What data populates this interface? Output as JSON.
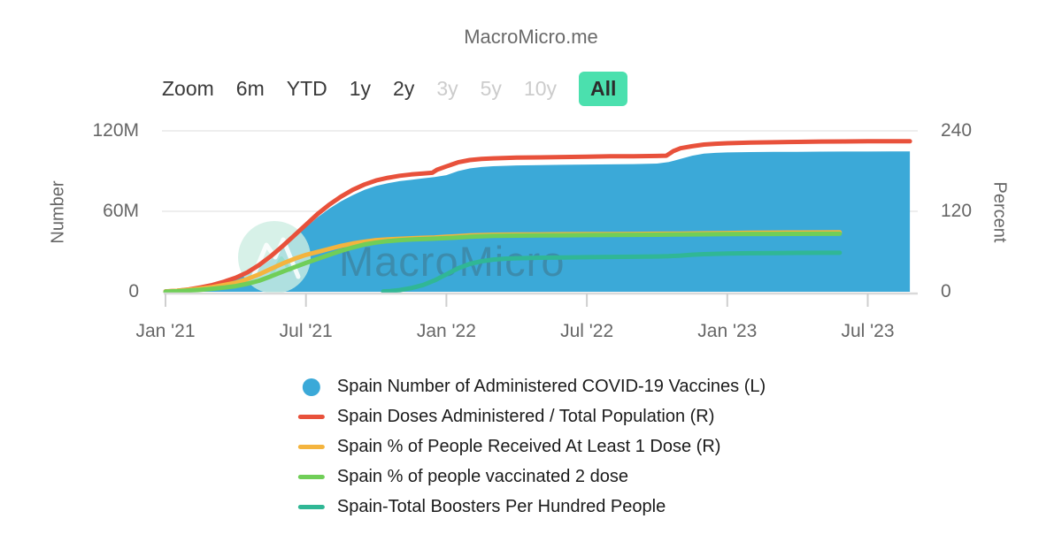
{
  "title": "MacroMicro.me",
  "toolbar": {
    "zoom_label": "Zoom",
    "accent_color": "#4BE0AE",
    "ranges": [
      {
        "label": "6m",
        "state": "enabled"
      },
      {
        "label": "YTD",
        "state": "enabled"
      },
      {
        "label": "1y",
        "state": "enabled"
      },
      {
        "label": "2y",
        "state": "enabled"
      },
      {
        "label": "3y",
        "state": "disabled"
      },
      {
        "label": "5y",
        "state": "disabled"
      },
      {
        "label": "10y",
        "state": "disabled"
      },
      {
        "label": "All",
        "state": "selected"
      }
    ]
  },
  "watermark": {
    "text": "MacroMicro"
  },
  "chart_data": {
    "type": "combo-area-line",
    "x_axis": {
      "labels": [
        "Jan '21",
        "Jul '21",
        "Jan '22",
        "Jul '22",
        "Jan '23",
        "Jul '23"
      ],
      "tick_t": [
        0,
        6,
        12,
        18,
        24,
        30
      ],
      "unit": "months since 2021-01"
    },
    "left_axis": {
      "title": "Number",
      "ticks": [
        "0",
        "60M",
        "120M"
      ],
      "tick_values": [
        0,
        60,
        120
      ],
      "max": 120
    },
    "right_axis": {
      "title": "Percent",
      "ticks": [
        "0",
        "120",
        "240"
      ],
      "tick_values": [
        0,
        120,
        240
      ],
      "max": 240
    },
    "grid": "horizontal",
    "legend_position": "bottom",
    "series": [
      {
        "name": "Spain Number of Administered COVID-19 Vaccines (L)",
        "type": "area",
        "axis": "left",
        "color": "#3BA9D8",
        "marker": "circle",
        "points": [
          [
            0,
            0
          ],
          [
            0.5,
            0.6
          ],
          [
            1,
            1.5
          ],
          [
            1.5,
            2.8
          ],
          [
            2,
            4.5
          ],
          [
            2.5,
            6.8
          ],
          [
            3,
            9.5
          ],
          [
            3.5,
            13
          ],
          [
            4,
            18
          ],
          [
            4.5,
            24
          ],
          [
            5,
            32
          ],
          [
            5.5,
            40
          ],
          [
            6,
            48
          ],
          [
            6.5,
            55.5
          ],
          [
            7,
            62
          ],
          [
            7.5,
            67.5
          ],
          [
            8,
            72
          ],
          [
            8.5,
            76
          ],
          [
            9,
            79
          ],
          [
            9.5,
            81
          ],
          [
            10,
            82.5
          ],
          [
            10.5,
            83.5
          ],
          [
            11,
            84.5
          ],
          [
            11.5,
            85.5
          ],
          [
            12,
            87
          ],
          [
            12.5,
            90
          ],
          [
            13,
            92
          ],
          [
            13.5,
            93
          ],
          [
            14,
            93.6
          ],
          [
            15,
            94.2
          ],
          [
            16,
            94.5
          ],
          [
            17,
            94.7
          ],
          [
            18,
            94.9
          ],
          [
            19,
            95
          ],
          [
            20,
            95.2
          ],
          [
            21,
            95.6
          ],
          [
            21.5,
            96.8
          ],
          [
            22,
            99
          ],
          [
            22.5,
            101.5
          ],
          [
            23,
            103
          ],
          [
            23.5,
            103.6
          ],
          [
            24,
            103.9
          ],
          [
            25,
            104.2
          ],
          [
            26,
            104.3
          ],
          [
            27,
            104.4
          ],
          [
            28,
            104.5
          ],
          [
            29,
            104.6
          ],
          [
            30,
            104.6
          ],
          [
            31,
            104.7
          ],
          [
            31.8,
            104.7
          ]
        ]
      },
      {
        "name": "Spain Doses Administered / Total Population (R)",
        "type": "line",
        "axis": "right",
        "color": "#E8513B",
        "marker": "line",
        "points": [
          [
            0,
            0.5
          ],
          [
            0.5,
            1.5
          ],
          [
            1,
            3.5
          ],
          [
            1.5,
            6.5
          ],
          [
            2,
            10
          ],
          [
            2.5,
            15
          ],
          [
            3,
            21
          ],
          [
            3.5,
            29
          ],
          [
            4,
            40
          ],
          [
            4.5,
            53
          ],
          [
            5,
            68
          ],
          [
            5.5,
            84
          ],
          [
            6,
            100
          ],
          [
            6.5,
            116
          ],
          [
            7,
            130
          ],
          [
            7.5,
            142
          ],
          [
            8,
            152
          ],
          [
            8.5,
            160
          ],
          [
            9,
            166
          ],
          [
            9.5,
            170
          ],
          [
            10,
            173
          ],
          [
            10.5,
            175
          ],
          [
            11,
            176.5
          ],
          [
            11.4,
            177.5
          ],
          [
            11.6,
            182
          ],
          [
            12,
            187
          ],
          [
            12.5,
            193
          ],
          [
            13,
            196.5
          ],
          [
            13.5,
            198
          ],
          [
            14,
            199
          ],
          [
            15,
            200
          ],
          [
            16,
            200.5
          ],
          [
            17,
            201
          ],
          [
            18,
            201.5
          ],
          [
            19,
            202
          ],
          [
            20,
            202.2
          ],
          [
            21,
            202.6
          ],
          [
            21.4,
            203
          ],
          [
            21.7,
            210
          ],
          [
            22,
            214
          ],
          [
            22.5,
            217
          ],
          [
            23,
            219.5
          ],
          [
            23.5,
            220.7
          ],
          [
            24,
            221.5
          ],
          [
            25,
            222.5
          ],
          [
            26,
            223
          ],
          [
            27,
            223.5
          ],
          [
            28,
            224
          ],
          [
            29,
            224.2
          ],
          [
            30,
            224.4
          ],
          [
            31,
            224.5
          ],
          [
            31.8,
            224.5
          ]
        ]
      },
      {
        "name": "Spain % of People Received At Least 1 Dose (R)",
        "type": "line",
        "axis": "right",
        "color": "#F4B43E",
        "marker": "line",
        "points": [
          [
            0,
            0.3
          ],
          [
            0.5,
            1.5
          ],
          [
            1,
            3
          ],
          [
            1.5,
            4.8
          ],
          [
            2,
            7
          ],
          [
            2.5,
            10
          ],
          [
            3,
            13.5
          ],
          [
            3.5,
            19
          ],
          [
            4,
            26
          ],
          [
            4.5,
            34
          ],
          [
            5,
            42
          ],
          [
            5.5,
            49
          ],
          [
            6,
            55
          ],
          [
            6.5,
            59.5
          ],
          [
            7,
            64
          ],
          [
            7.5,
            68.5
          ],
          [
            8,
            72
          ],
          [
            8.5,
            74.8
          ],
          [
            9,
            77
          ],
          [
            9.5,
            78.2
          ],
          [
            10,
            79
          ],
          [
            10.5,
            79.8
          ],
          [
            11,
            80.4
          ],
          [
            11.5,
            81
          ],
          [
            12,
            82
          ],
          [
            12.5,
            83
          ],
          [
            13,
            84
          ],
          [
            14,
            85
          ],
          [
            15,
            85.4
          ],
          [
            16,
            85.6
          ],
          [
            17,
            85.8
          ],
          [
            18,
            86
          ],
          [
            19,
            86.1
          ],
          [
            20,
            86.3
          ],
          [
            21,
            86.5
          ],
          [
            22,
            86.8
          ],
          [
            23,
            87.2
          ],
          [
            24,
            87.6
          ],
          [
            25,
            88
          ],
          [
            26,
            88.2
          ],
          [
            27,
            88.4
          ],
          [
            28,
            88.5
          ],
          [
            28.8,
            88.6
          ]
        ]
      },
      {
        "name": "Spain % of people vaccinated 2 dose",
        "type": "line",
        "axis": "right",
        "color": "#70CE58",
        "marker": "line",
        "points": [
          [
            0,
            0.1
          ],
          [
            0.5,
            0.8
          ],
          [
            1,
            1.8
          ],
          [
            1.5,
            3
          ],
          [
            2,
            4.5
          ],
          [
            2.5,
            6.2
          ],
          [
            3,
            8.5
          ],
          [
            3.5,
            12
          ],
          [
            4,
            16.5
          ],
          [
            4.5,
            23
          ],
          [
            5,
            30
          ],
          [
            5.5,
            36.5
          ],
          [
            6,
            43
          ],
          [
            6.5,
            49
          ],
          [
            7,
            55
          ],
          [
            7.5,
            61
          ],
          [
            8,
            66
          ],
          [
            8.5,
            70.5
          ],
          [
            9,
            73.5
          ],
          [
            9.5,
            75.5
          ],
          [
            10,
            77
          ],
          [
            10.5,
            77.9
          ],
          [
            11,
            78.6
          ],
          [
            11.5,
            79.2
          ],
          [
            12,
            80
          ],
          [
            12.5,
            81
          ],
          [
            13,
            82
          ],
          [
            14,
            83.3
          ],
          [
            15,
            83.8
          ],
          [
            16,
            84.1
          ],
          [
            17,
            84.3
          ],
          [
            18,
            84.5
          ],
          [
            19,
            84.7
          ],
          [
            20,
            84.9
          ],
          [
            21,
            85.1
          ],
          [
            22,
            85.4
          ],
          [
            23,
            85.7
          ],
          [
            24,
            86
          ],
          [
            25,
            86.2
          ],
          [
            26,
            86.3
          ],
          [
            27,
            86.4
          ],
          [
            28,
            86.5
          ],
          [
            28.8,
            86.5
          ]
        ]
      },
      {
        "name": "Spain-Total Boosters Per Hundred People",
        "type": "line",
        "axis": "right",
        "color": "#30B795",
        "marker": "line",
        "points": [
          [
            9.3,
            0.5
          ],
          [
            9.6,
            1
          ],
          [
            10,
            2.5
          ],
          [
            10.5,
            5.5
          ],
          [
            11,
            10
          ],
          [
            11.5,
            17
          ],
          [
            12,
            26
          ],
          [
            12.5,
            35
          ],
          [
            13,
            41.5
          ],
          [
            13.5,
            45.5
          ],
          [
            14,
            48
          ],
          [
            14.5,
            49.3
          ],
          [
            15,
            50
          ],
          [
            16,
            50.8
          ],
          [
            17,
            51.2
          ],
          [
            18,
            51.6
          ],
          [
            19,
            51.9
          ],
          [
            20,
            52.2
          ],
          [
            21,
            52.6
          ],
          [
            21.5,
            53
          ],
          [
            22,
            54
          ],
          [
            22.5,
            55.2
          ],
          [
            23,
            56
          ],
          [
            24,
            57
          ],
          [
            25,
            57.5
          ],
          [
            26,
            57.8
          ],
          [
            27,
            58
          ],
          [
            28,
            58.1
          ],
          [
            28.8,
            58.2
          ]
        ]
      }
    ]
  }
}
